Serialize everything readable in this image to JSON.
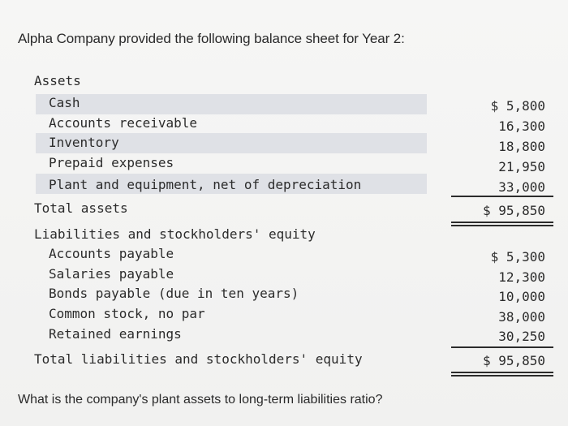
{
  "intro": "Alpha Company provided the following balance sheet for Year 2:",
  "assets": {
    "heading": "Assets",
    "items": [
      {
        "label": "Cash",
        "amount": "$ 5,800"
      },
      {
        "label": "Accounts receivable",
        "amount": "16,300"
      },
      {
        "label": "Inventory",
        "amount": "18,800"
      },
      {
        "label": "Prepaid expenses",
        "amount": "21,950"
      },
      {
        "label": "Plant and equipment, net of depreciation",
        "amount": "33,000"
      }
    ],
    "total_label": "Total assets",
    "total_amount": "$ 95,850"
  },
  "liabilities": {
    "heading": "Liabilities and stockholders' equity",
    "items": [
      {
        "label": "Accounts payable",
        "amount": "$ 5,300"
      },
      {
        "label": "Salaries payable",
        "amount": "12,300"
      },
      {
        "label": "Bonds payable (due in ten years)",
        "amount": "10,000"
      },
      {
        "label": "Common stock, no par",
        "amount": "38,000"
      },
      {
        "label": "Retained earnings",
        "amount": "30,250"
      }
    ],
    "total_label": "Total liabilities and stockholders' equity",
    "total_amount": "$ 95,850"
  },
  "question": "What is the company's plant assets to long-term liabilities ratio?"
}
